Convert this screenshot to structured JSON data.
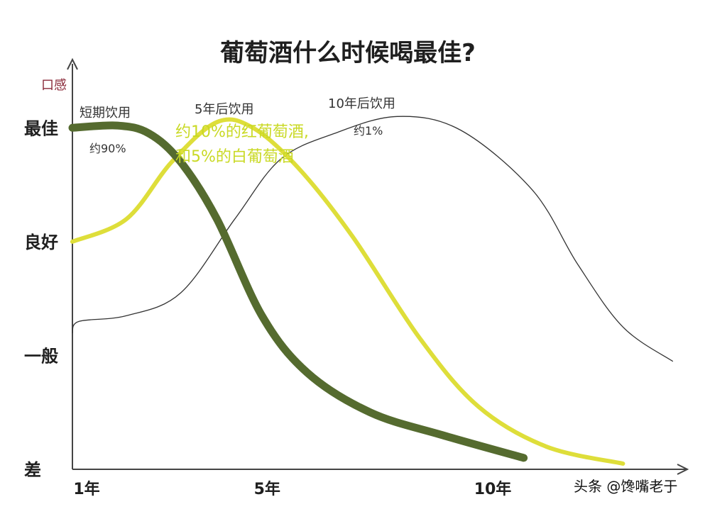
{
  "chart_data": {
    "type": "line",
    "title": "葡萄酒什么时候喝最佳?",
    "ylabel": "口感",
    "y_categories": [
      "差",
      "一般",
      "良好",
      "最佳"
    ],
    "y_range": [
      0,
      3.6
    ],
    "x_ticks": [
      {
        "label": "1年",
        "x": 1
      },
      {
        "label": "5年",
        "x": 5
      },
      {
        "label": "10年",
        "x": 10
      }
    ],
    "x_range": [
      1,
      14.5
    ],
    "series": [
      {
        "name": "短期饮用",
        "share": "约90%",
        "color": "#556b2f",
        "points": [
          [
            1,
            3.0
          ],
          [
            2,
            3.02
          ],
          [
            2.7,
            2.95
          ],
          [
            3.4,
            2.7
          ],
          [
            4.2,
            2.2
          ],
          [
            5.2,
            1.35
          ],
          [
            6.2,
            0.85
          ],
          [
            7.6,
            0.5
          ],
          [
            9.2,
            0.3
          ],
          [
            11,
            0.1
          ]
        ]
      },
      {
        "name": "5年后饮用",
        "share": "",
        "color": "#dede3a",
        "points": [
          [
            1,
            2.0
          ],
          [
            2.2,
            2.2
          ],
          [
            3.2,
            2.7
          ],
          [
            4.2,
            3.05
          ],
          [
            5,
            3.0
          ],
          [
            6,
            2.65
          ],
          [
            7.2,
            2.05
          ],
          [
            8.7,
            1.15
          ],
          [
            10,
            0.55
          ],
          [
            11.5,
            0.2
          ],
          [
            13.2,
            0.05
          ]
        ]
      },
      {
        "name": "10年后饮用",
        "share": "约1%",
        "color": "#333333",
        "points": [
          [
            1,
            1.2
          ],
          [
            1.15,
            1.3
          ],
          [
            2.2,
            1.35
          ],
          [
            3.4,
            1.55
          ],
          [
            4.6,
            2.2
          ],
          [
            5.6,
            2.72
          ],
          [
            6.8,
            2.95
          ],
          [
            8.2,
            3.1
          ],
          [
            9.6,
            2.98
          ],
          [
            11.2,
            2.45
          ],
          [
            12.2,
            1.8
          ],
          [
            13.2,
            1.25
          ],
          [
            14.3,
            0.95
          ]
        ]
      }
    ],
    "annotations": {
      "overlay_line1": "约10%的红葡萄酒,",
      "overlay_line2": "和5%的白葡萄酒"
    },
    "grid": false,
    "legend": "none"
  },
  "watermark": "头条 @馋嘴老于"
}
